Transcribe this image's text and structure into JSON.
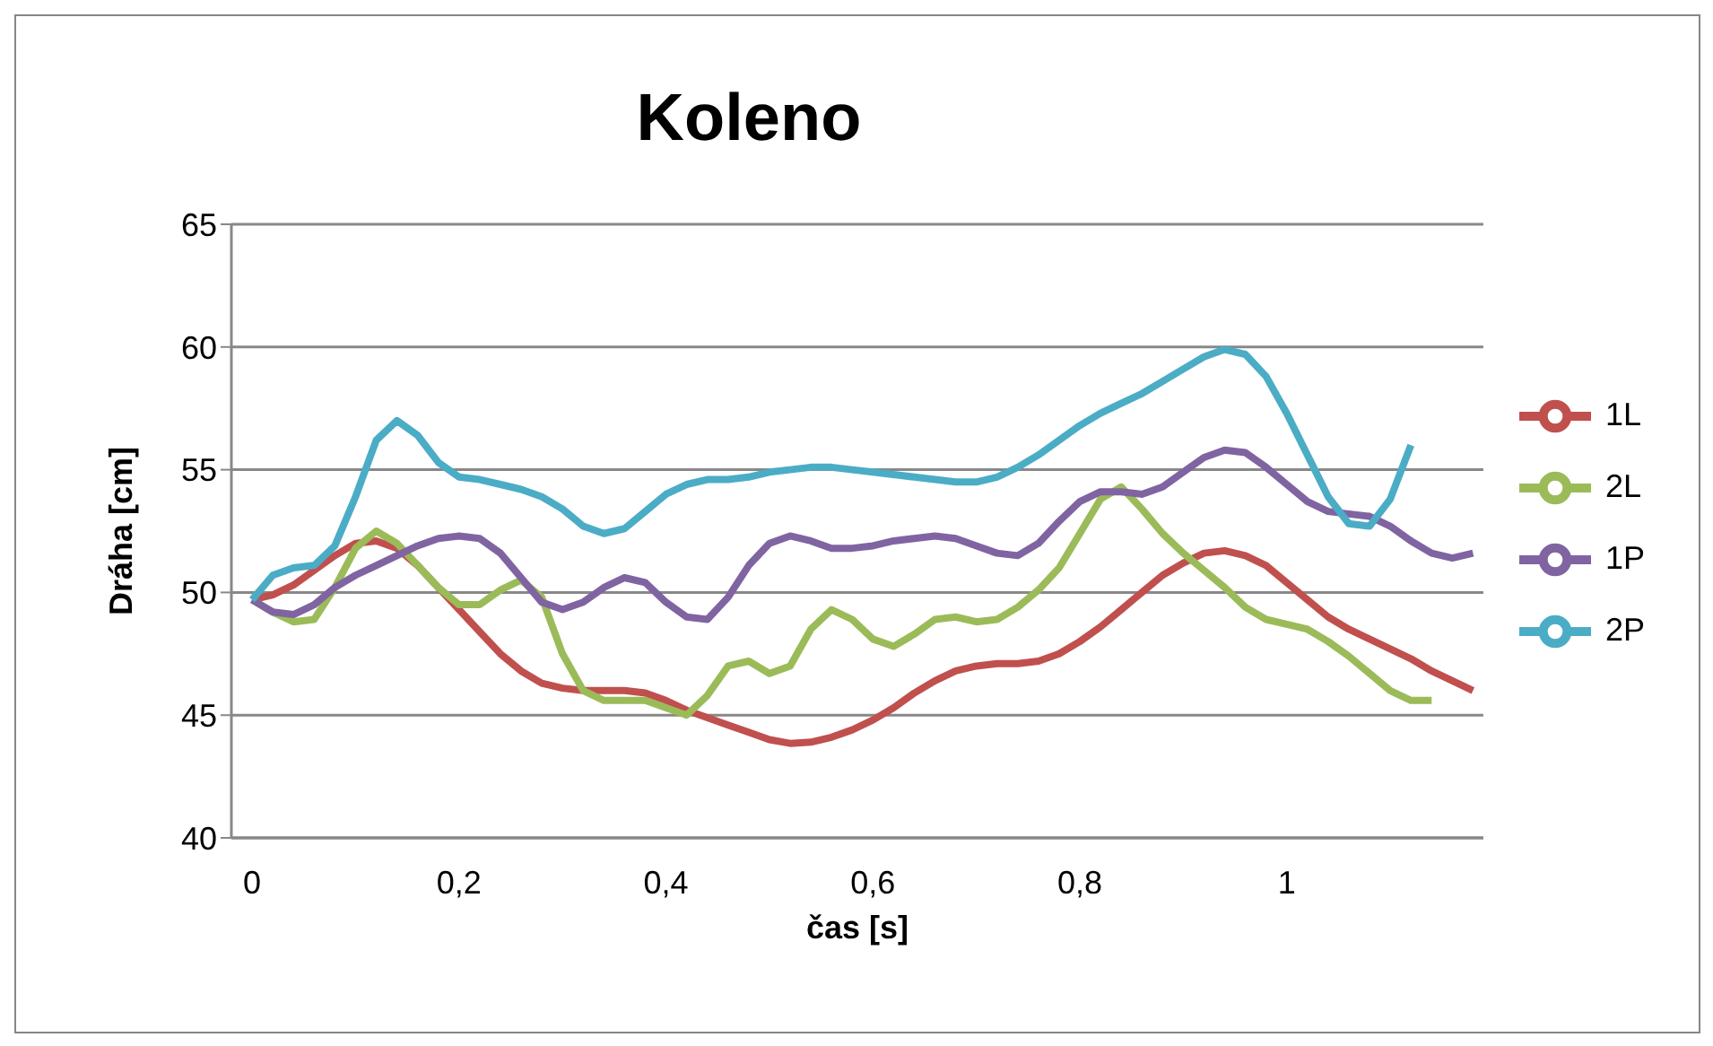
{
  "chart_data": {
    "type": "line",
    "title": "Koleno",
    "xlabel": "čas  [s]",
    "ylabel": "Dráha [cm]",
    "x": [
      0,
      0.02,
      0.04,
      0.06,
      0.08,
      0.1,
      0.12,
      0.14,
      0.16,
      0.18,
      0.2,
      0.22,
      0.24,
      0.26,
      0.28,
      0.3,
      0.32,
      0.34,
      0.36,
      0.38,
      0.4,
      0.42,
      0.44,
      0.46,
      0.48,
      0.5,
      0.52,
      0.54,
      0.56,
      0.58,
      0.6,
      0.62,
      0.64,
      0.66,
      0.68,
      0.7,
      0.72,
      0.74,
      0.76,
      0.78,
      0.8,
      0.82,
      0.84,
      0.86,
      0.88,
      0.9,
      0.92,
      0.94,
      0.96,
      0.98,
      1.0,
      1.02,
      1.04,
      1.06,
      1.08,
      1.1,
      1.12,
      1.14,
      1.16,
      1.18
    ],
    "series": [
      {
        "name": "1L",
        "color": "#c0504d",
        "values": [
          49.7,
          49.9,
          50.3,
          50.9,
          51.5,
          52.0,
          52.1,
          51.8,
          51.1,
          50.2,
          49.3,
          48.4,
          47.5,
          46.8,
          46.3,
          46.1,
          46.0,
          46.0,
          46.0,
          45.9,
          45.6,
          45.2,
          44.9,
          44.6,
          44.3,
          44.0,
          43.85,
          43.9,
          44.1,
          44.4,
          44.8,
          45.3,
          45.9,
          46.4,
          46.8,
          47.0,
          47.1,
          47.1,
          47.2,
          47.5,
          48.0,
          48.6,
          49.3,
          50.0,
          50.7,
          51.2,
          51.6,
          51.7,
          51.5,
          51.1,
          50.4,
          49.7,
          49.0,
          48.5,
          48.1,
          47.7,
          47.3,
          46.8,
          46.4,
          46.0
        ]
      },
      {
        "name": "2L",
        "color": "#9bbb59",
        "values": [
          49.7,
          49.2,
          48.8,
          48.9,
          50.2,
          51.8,
          52.5,
          52.0,
          51.1,
          50.2,
          49.5,
          49.5,
          50.1,
          50.5,
          49.8,
          47.5,
          46.0,
          45.6,
          45.6,
          45.6,
          45.3,
          45.0,
          45.8,
          47.0,
          47.2,
          46.7,
          47.0,
          48.5,
          49.3,
          48.9,
          48.1,
          47.8,
          48.3,
          48.9,
          49.0,
          48.8,
          48.9,
          49.4,
          50.1,
          51.0,
          52.4,
          53.8,
          54.3,
          53.4,
          52.4,
          51.6,
          50.9,
          50.2,
          49.4,
          48.9,
          48.7,
          48.5,
          48.0,
          47.4,
          46.7,
          46.0,
          45.6,
          45.6,
          null,
          null
        ]
      },
      {
        "name": "1P",
        "color": "#8064a2",
        "values": [
          49.7,
          49.2,
          49.1,
          49.5,
          50.2,
          50.7,
          51.1,
          51.5,
          51.9,
          52.2,
          52.3,
          52.2,
          51.6,
          50.6,
          49.6,
          49.3,
          49.6,
          50.2,
          50.6,
          50.4,
          49.6,
          49.0,
          48.9,
          49.8,
          51.1,
          52.0,
          52.3,
          52.1,
          51.8,
          51.8,
          51.9,
          52.1,
          52.2,
          52.3,
          52.2,
          51.9,
          51.6,
          51.5,
          52.0,
          52.9,
          53.7,
          54.1,
          54.1,
          54.0,
          54.3,
          54.9,
          55.5,
          55.8,
          55.7,
          55.1,
          54.4,
          53.7,
          53.3,
          53.2,
          53.1,
          52.7,
          52.1,
          51.6,
          51.4,
          51.6
        ]
      },
      {
        "name": "2P",
        "color": "#4bacc6",
        "values": [
          49.7,
          50.7,
          51.0,
          51.1,
          51.9,
          53.9,
          56.2,
          57.0,
          56.4,
          55.3,
          54.7,
          54.6,
          54.4,
          54.2,
          53.9,
          53.4,
          52.7,
          52.4,
          52.6,
          53.3,
          54.0,
          54.4,
          54.6,
          54.6,
          54.7,
          54.9,
          55.0,
          55.1,
          55.1,
          55.0,
          54.9,
          54.8,
          54.7,
          54.6,
          54.5,
          54.5,
          54.7,
          55.1,
          55.6,
          56.2,
          56.8,
          57.3,
          57.7,
          58.1,
          58.6,
          59.1,
          59.6,
          59.9,
          59.7,
          58.8,
          57.3,
          55.6,
          53.9,
          52.8,
          52.7,
          53.8,
          56.0,
          null,
          null,
          null
        ]
      }
    ],
    "xlim": [
      -0.02,
      1.19
    ],
    "xticks": [
      0,
      {
        "value": 0.2,
        "label": "0,2"
      },
      {
        "value": 0.4,
        "label": "0,4"
      },
      {
        "value": 0.6,
        "label": "0,6"
      },
      {
        "value": 0.8,
        "label": "0,8"
      },
      1
    ],
    "ylim": [
      40,
      65
    ],
    "yticks": [
      40,
      45,
      50,
      55,
      60,
      65
    ],
    "grid": "y",
    "legend": "right",
    "line_style": "solid"
  }
}
